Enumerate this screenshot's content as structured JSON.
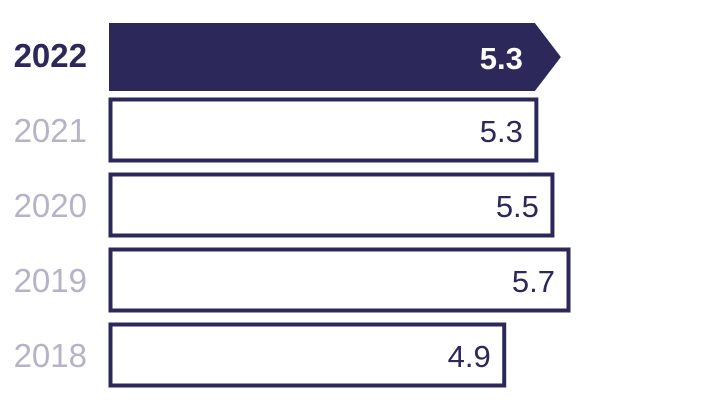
{
  "chart_data": {
    "type": "bar",
    "orientation": "horizontal",
    "categories": [
      "2022",
      "2021",
      "2020",
      "2019",
      "2018"
    ],
    "values": [
      5.3,
      5.3,
      5.5,
      5.7,
      4.9
    ],
    "value_labels": [
      "5.3",
      "5.3",
      "5.5",
      "5.7",
      "4.9"
    ],
    "highlight_index": 0,
    "title": "",
    "xlabel": "",
    "ylabel": "",
    "xlim": [
      0,
      5.7
    ],
    "grid": false,
    "legend": "none"
  },
  "colors": {
    "highlight_fill": "#2c285a",
    "outline": "#2c285a",
    "regular_fill": "#ffffff",
    "highlight_text": "#ffffff",
    "value_text": "#2c285a",
    "highlight_label": "#2c285a",
    "muted_label": "#b7b2c8"
  }
}
